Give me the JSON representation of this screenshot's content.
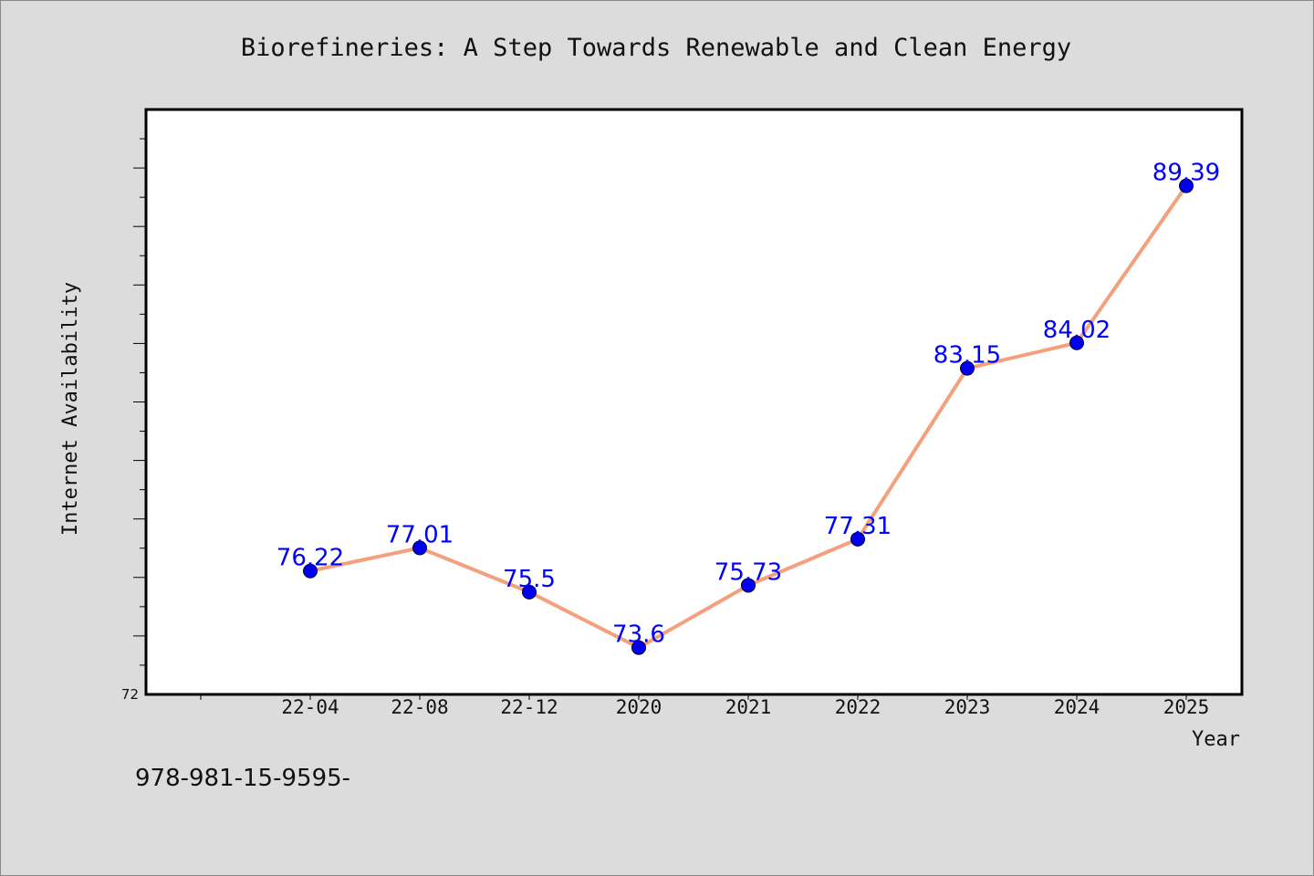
{
  "chart_data": {
    "type": "line",
    "title": "Biorefineries: A Step Towards Renewable and Clean Energy",
    "xlabel": "Year",
    "ylabel": "Internet Availability",
    "categories": [
      "22-04",
      "22-08",
      "22-12",
      "2020",
      "2021",
      "2022",
      "2023",
      "2024",
      "2025"
    ],
    "values": [
      76.22,
      77.01,
      75.5,
      73.6,
      75.73,
      77.31,
      83.15,
      84.02,
      89.39
    ],
    "data_labels": [
      "76.22",
      "77.01",
      "75.5",
      "73.6",
      "75.73",
      "77.31",
      "83.15",
      "84.02",
      "89.39"
    ],
    "ylim": [
      72,
      92
    ],
    "y_tick_labels": [
      "72"
    ],
    "grid": false,
    "line_color": "#f4a07c",
    "marker_color": "#0000ee",
    "label_color": "#0000ff",
    "plot_background": "#ffffff",
    "figure_background": "#dcdcdc"
  },
  "footnote": "978-981-15-9595-"
}
